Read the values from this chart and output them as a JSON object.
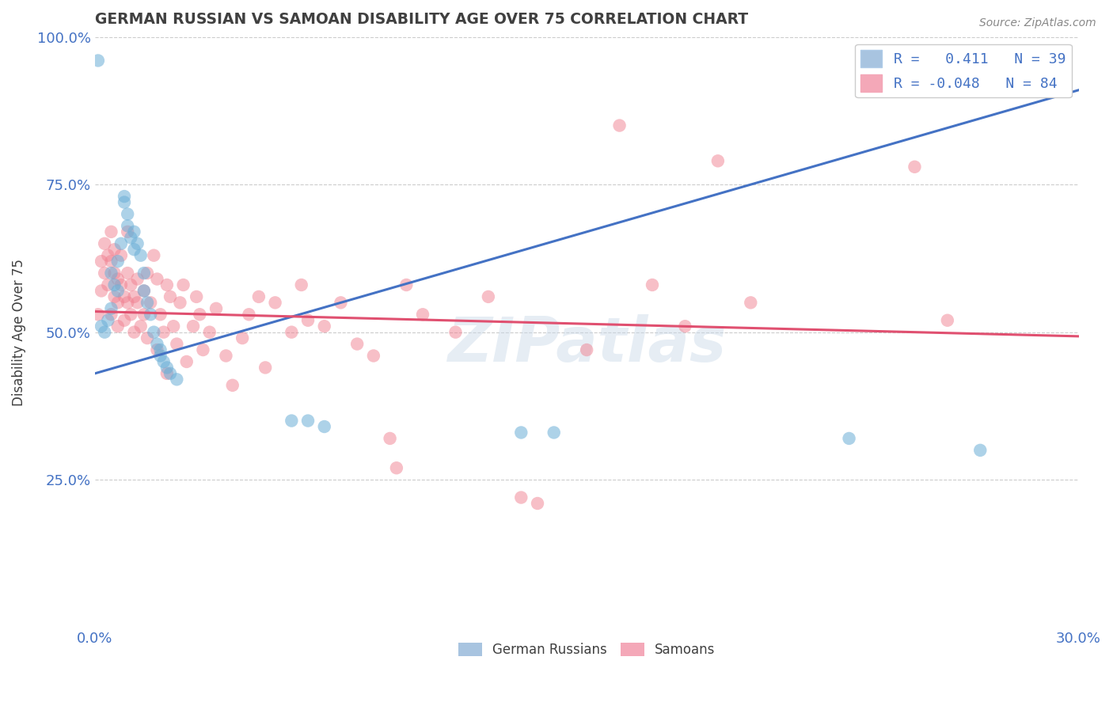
{
  "title": "GERMAN RUSSIAN VS SAMOAN DISABILITY AGE OVER 75 CORRELATION CHART",
  "source": "Source: ZipAtlas.com",
  "ylabel": "Disability Age Over 75",
  "xlim": [
    0.0,
    0.3
  ],
  "ylim": [
    0.0,
    1.0
  ],
  "ytick_positions": [
    0.25,
    0.5,
    0.75,
    1.0
  ],
  "ytick_labels": [
    "25.0%",
    "50.0%",
    "75.0%",
    "100.0%"
  ],
  "legend_entries": [
    {
      "label": "R =   0.411   N = 39",
      "color": "#a8c4e0"
    },
    {
      "label": "R = -0.048   N = 84",
      "color": "#f4a8b8"
    }
  ],
  "watermark": "ZIPatlas",
  "blue_color": "#6aaed6",
  "pink_color": "#f08090",
  "blue_line_color": "#4472c4",
  "pink_line_color": "#e05070",
  "blue_line": [
    [
      0.0,
      0.43
    ],
    [
      0.3,
      0.91
    ]
  ],
  "pink_line": [
    [
      0.0,
      0.535
    ],
    [
      0.3,
      0.493
    ]
  ],
  "blue_scatter": [
    [
      0.001,
      0.96
    ],
    [
      0.28,
      0.97
    ],
    [
      0.002,
      0.51
    ],
    [
      0.003,
      0.5
    ],
    [
      0.004,
      0.52
    ],
    [
      0.005,
      0.54
    ],
    [
      0.005,
      0.6
    ],
    [
      0.006,
      0.58
    ],
    [
      0.007,
      0.62
    ],
    [
      0.007,
      0.57
    ],
    [
      0.008,
      0.65
    ],
    [
      0.009,
      0.72
    ],
    [
      0.009,
      0.73
    ],
    [
      0.01,
      0.7
    ],
    [
      0.01,
      0.68
    ],
    [
      0.011,
      0.66
    ],
    [
      0.012,
      0.64
    ],
    [
      0.012,
      0.67
    ],
    [
      0.013,
      0.65
    ],
    [
      0.014,
      0.63
    ],
    [
      0.015,
      0.6
    ],
    [
      0.015,
      0.57
    ],
    [
      0.016,
      0.55
    ],
    [
      0.017,
      0.53
    ],
    [
      0.018,
      0.5
    ],
    [
      0.019,
      0.48
    ],
    [
      0.02,
      0.47
    ],
    [
      0.02,
      0.46
    ],
    [
      0.021,
      0.45
    ],
    [
      0.022,
      0.44
    ],
    [
      0.023,
      0.43
    ],
    [
      0.025,
      0.42
    ],
    [
      0.06,
      0.35
    ],
    [
      0.065,
      0.35
    ],
    [
      0.07,
      0.34
    ],
    [
      0.13,
      0.33
    ],
    [
      0.14,
      0.33
    ],
    [
      0.23,
      0.32
    ],
    [
      0.27,
      0.3
    ]
  ],
  "pink_scatter": [
    [
      0.001,
      0.53
    ],
    [
      0.002,
      0.62
    ],
    [
      0.002,
      0.57
    ],
    [
      0.003,
      0.65
    ],
    [
      0.003,
      0.6
    ],
    [
      0.004,
      0.63
    ],
    [
      0.004,
      0.58
    ],
    [
      0.005,
      0.62
    ],
    [
      0.005,
      0.67
    ],
    [
      0.005,
      0.53
    ],
    [
      0.006,
      0.56
    ],
    [
      0.006,
      0.6
    ],
    [
      0.006,
      0.64
    ],
    [
      0.007,
      0.55
    ],
    [
      0.007,
      0.59
    ],
    [
      0.007,
      0.51
    ],
    [
      0.008,
      0.58
    ],
    [
      0.008,
      0.63
    ],
    [
      0.009,
      0.56
    ],
    [
      0.009,
      0.52
    ],
    [
      0.01,
      0.6
    ],
    [
      0.01,
      0.55
    ],
    [
      0.01,
      0.67
    ],
    [
      0.011,
      0.53
    ],
    [
      0.011,
      0.58
    ],
    [
      0.012,
      0.56
    ],
    [
      0.012,
      0.5
    ],
    [
      0.013,
      0.55
    ],
    [
      0.013,
      0.59
    ],
    [
      0.014,
      0.51
    ],
    [
      0.015,
      0.57
    ],
    [
      0.015,
      0.53
    ],
    [
      0.016,
      0.6
    ],
    [
      0.016,
      0.49
    ],
    [
      0.017,
      0.55
    ],
    [
      0.018,
      0.63
    ],
    [
      0.019,
      0.47
    ],
    [
      0.019,
      0.59
    ],
    [
      0.02,
      0.53
    ],
    [
      0.021,
      0.5
    ],
    [
      0.022,
      0.58
    ],
    [
      0.022,
      0.43
    ],
    [
      0.023,
      0.56
    ],
    [
      0.024,
      0.51
    ],
    [
      0.025,
      0.48
    ],
    [
      0.026,
      0.55
    ],
    [
      0.027,
      0.58
    ],
    [
      0.028,
      0.45
    ],
    [
      0.03,
      0.51
    ],
    [
      0.031,
      0.56
    ],
    [
      0.032,
      0.53
    ],
    [
      0.033,
      0.47
    ],
    [
      0.035,
      0.5
    ],
    [
      0.037,
      0.54
    ],
    [
      0.04,
      0.46
    ],
    [
      0.042,
      0.41
    ],
    [
      0.045,
      0.49
    ],
    [
      0.047,
      0.53
    ],
    [
      0.05,
      0.56
    ],
    [
      0.052,
      0.44
    ],
    [
      0.055,
      0.55
    ],
    [
      0.06,
      0.5
    ],
    [
      0.063,
      0.58
    ],
    [
      0.065,
      0.52
    ],
    [
      0.07,
      0.51
    ],
    [
      0.075,
      0.55
    ],
    [
      0.08,
      0.48
    ],
    [
      0.085,
      0.46
    ],
    [
      0.09,
      0.32
    ],
    [
      0.092,
      0.27
    ],
    [
      0.095,
      0.58
    ],
    [
      0.1,
      0.53
    ],
    [
      0.11,
      0.5
    ],
    [
      0.12,
      0.56
    ],
    [
      0.13,
      0.22
    ],
    [
      0.135,
      0.21
    ],
    [
      0.15,
      0.47
    ],
    [
      0.16,
      0.85
    ],
    [
      0.17,
      0.58
    ],
    [
      0.18,
      0.51
    ],
    [
      0.19,
      0.79
    ],
    [
      0.2,
      0.55
    ],
    [
      0.25,
      0.78
    ],
    [
      0.26,
      0.52
    ]
  ],
  "background_color": "#ffffff",
  "grid_color": "#cccccc",
  "title_color": "#404040",
  "axis_label_color": "#404040",
  "tick_color": "#4472c4"
}
